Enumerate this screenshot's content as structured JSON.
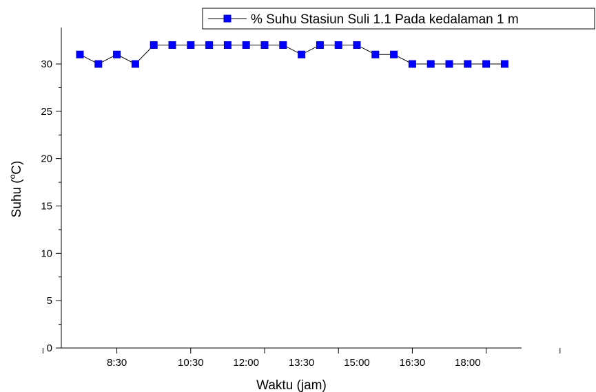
{
  "chart_data": {
    "type": "line",
    "xlabel": "Waktu (jam)",
    "ylabel_main": "Suhu (",
    "ylabel_sup": "o",
    "ylabel_tail": "C)",
    "ylim": [
      0,
      32
    ],
    "yticks": [
      0,
      5,
      10,
      15,
      20,
      25,
      30
    ],
    "x_tick_labels": [
      "8:30",
      "10:30",
      "12:00",
      "13:30",
      "15:00",
      "16:30",
      "18:00"
    ],
    "grid": false,
    "legend_position": "top-right",
    "series": [
      {
        "name": "% Suhu Stasiun Suli 1.1 Pada kedalaman 1 m",
        "color": "#0000ff",
        "x": [
          "7:30",
          "8:00",
          "8:30",
          "9:00",
          "9:30",
          "10:00",
          "10:30",
          "11:00",
          "11:30",
          "12:00",
          "12:30",
          "13:00",
          "13:30",
          "14:00",
          "14:30",
          "15:00",
          "15:30",
          "16:00",
          "16:30",
          "17:00",
          "17:30",
          "18:00",
          "18:30",
          "19:00"
        ],
        "values": [
          31,
          30,
          31,
          30,
          32,
          32,
          32,
          32,
          32,
          32,
          32,
          32,
          31,
          32,
          32,
          32,
          31,
          31,
          30,
          30,
          30,
          30,
          30,
          30
        ]
      }
    ]
  }
}
